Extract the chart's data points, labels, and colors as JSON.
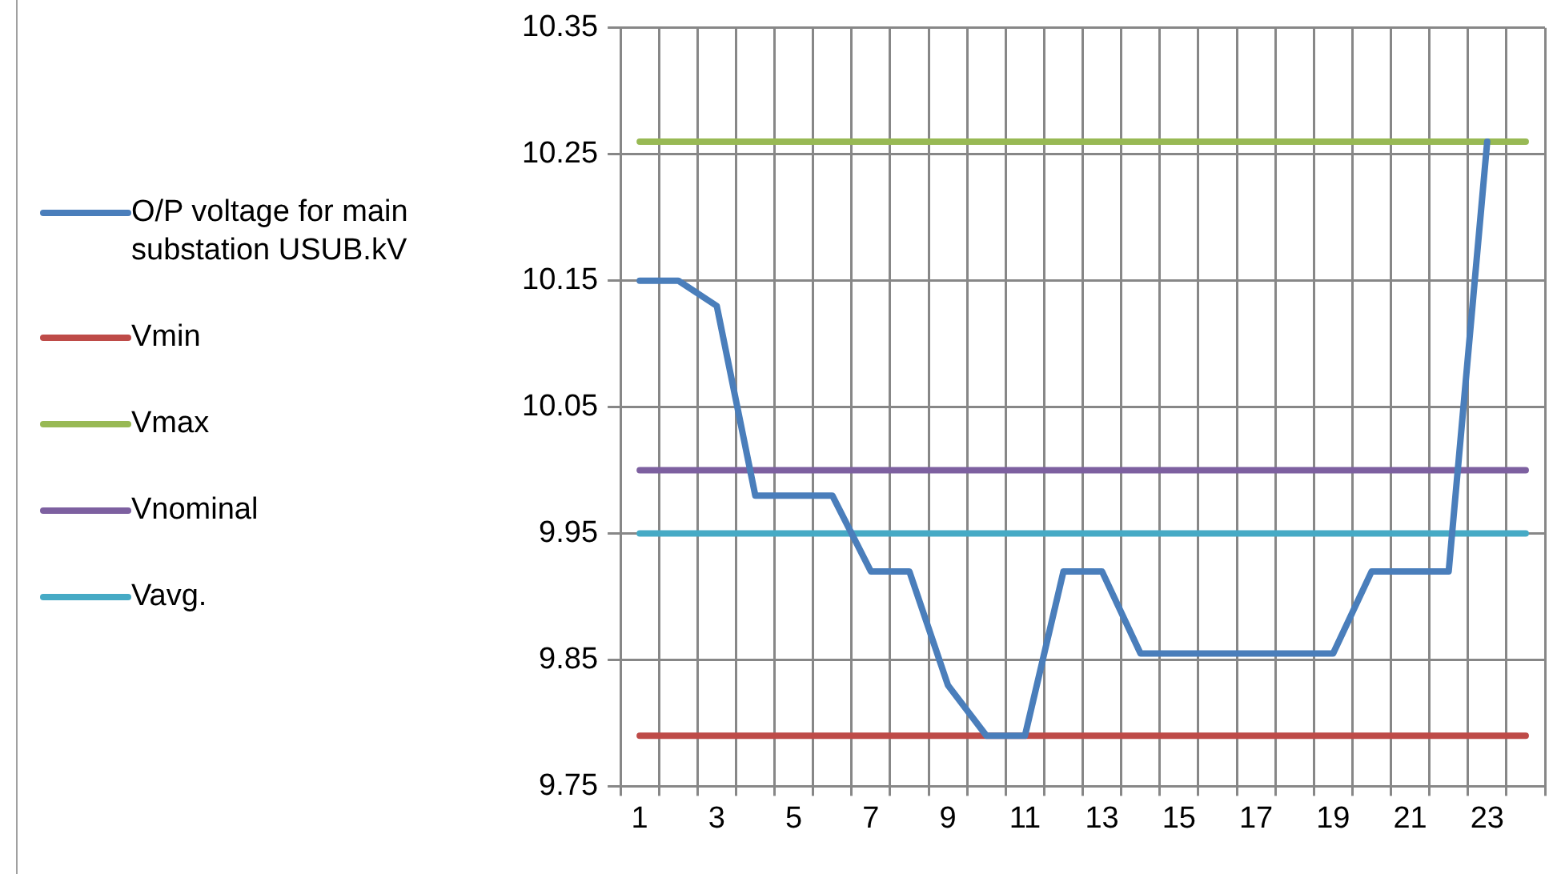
{
  "chart_data": {
    "type": "line",
    "x": [
      1,
      2,
      3,
      4,
      5,
      6,
      7,
      8,
      9,
      10,
      11,
      12,
      13,
      14,
      15,
      16,
      17,
      18,
      19,
      20,
      21,
      22,
      23,
      24
    ],
    "xlim": [
      0.5,
      24.5
    ],
    "xticks": [
      {
        "value": 0.5,
        "label": null
      },
      1,
      {
        "value": 1.5,
        "label": null
      },
      {
        "value": 2.5,
        "label": null
      },
      3,
      {
        "value": 3.5,
        "label": null
      },
      {
        "value": 4.5,
        "label": null
      },
      5,
      {
        "value": 5.5,
        "label": null
      },
      {
        "value": 6.5,
        "label": null
      },
      7,
      {
        "value": 7.5,
        "label": null
      },
      {
        "value": 8.5,
        "label": null
      },
      9,
      {
        "value": 9.5,
        "label": null
      },
      {
        "value": 10.5,
        "label": null
      },
      11,
      {
        "value": 11.5,
        "label": null
      },
      {
        "value": 12.5,
        "label": null
      },
      13,
      {
        "value": 13.5,
        "label": null
      },
      {
        "value": 14.5,
        "label": null
      },
      15,
      {
        "value": 15.5,
        "label": null
      },
      {
        "value": 16.5,
        "label": null
      },
      17,
      {
        "value": 17.5,
        "label": null
      },
      {
        "value": 18.5,
        "label": null
      },
      19,
      {
        "value": 19.5,
        "label": null
      },
      {
        "value": 20.5,
        "label": null
      },
      21,
      {
        "value": 21.5,
        "label": null
      },
      {
        "value": 22.5,
        "label": null
      },
      23,
      {
        "value": 23.5,
        "label": null
      },
      {
        "value": 24.5,
        "label": null
      }
    ],
    "ylim": [
      9.75,
      10.35
    ],
    "yticks": [
      9.75,
      9.85,
      9.95,
      10.05,
      10.15,
      10.25,
      10.35
    ],
    "grid": true,
    "legend": "left",
    "marker": "none",
    "line_style": "solid",
    "series": [
      {
        "name": "O/P voltage for main substation USUB.kV",
        "color": "#4a7ebb",
        "values": [
          10.15,
          10.15,
          10.13,
          9.98,
          9.98,
          9.98,
          9.92,
          9.92,
          9.83,
          9.79,
          9.79,
          9.92,
          9.92,
          9.855,
          9.855,
          9.855,
          9.855,
          9.855,
          9.855,
          9.92,
          9.92,
          9.92,
          10.26,
          null
        ]
      },
      {
        "name": "Vmin",
        "color": "#be4b48",
        "values": [
          9.79,
          9.79,
          9.79,
          9.79,
          9.79,
          9.79,
          9.79,
          9.79,
          9.79,
          9.79,
          9.79,
          9.79,
          9.79,
          9.79,
          9.79,
          9.79,
          9.79,
          9.79,
          9.79,
          9.79,
          9.79,
          9.79,
          9.79,
          9.79
        ]
      },
      {
        "name": "Vmax",
        "color": "#98b954",
        "values": [
          10.26,
          10.26,
          10.26,
          10.26,
          10.26,
          10.26,
          10.26,
          10.26,
          10.26,
          10.26,
          10.26,
          10.26,
          10.26,
          10.26,
          10.26,
          10.26,
          10.26,
          10.26,
          10.26,
          10.26,
          10.26,
          10.26,
          10.26,
          10.26
        ]
      },
      {
        "name": "Vnominal",
        "color": "#7d60a0",
        "values": [
          10,
          10,
          10,
          10,
          10,
          10,
          10,
          10,
          10,
          10,
          10,
          10,
          10,
          10,
          10,
          10,
          10,
          10,
          10,
          10,
          10,
          10,
          10,
          10
        ]
      },
      {
        "name": "Vavg.",
        "color": "#46aac5",
        "values": [
          9.95,
          9.95,
          9.95,
          9.95,
          9.95,
          9.95,
          9.95,
          9.95,
          9.95,
          9.95,
          9.95,
          9.95,
          9.95,
          9.95,
          9.95,
          9.95,
          9.95,
          9.95,
          9.95,
          9.95,
          9.95,
          9.95,
          9.95,
          9.95
        ]
      }
    ]
  }
}
